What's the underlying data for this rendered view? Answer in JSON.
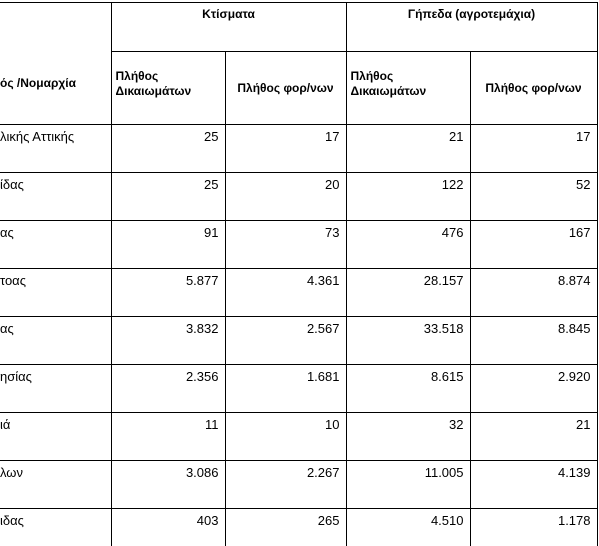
{
  "table": {
    "row_header": "ός /Νομαρχία",
    "groups": [
      "Κτίσματα",
      "Γήπεδα (αγροτεμάχια)"
    ],
    "subheaders": [
      "Πλήθος Δικαιωμάτων",
      "Πλήθος φορ/νων",
      "Πλήθος Δικαιωμάτων",
      "Πλήθος φορ/νων"
    ],
    "rows": [
      [
        "λικής Αττικής",
        "25",
        "17",
        "21",
        "17"
      ],
      [
        "ίδας",
        "25",
        "20",
        "122",
        "52"
      ],
      [
        "ας",
        "91",
        "73",
        "476",
        "167"
      ],
      [
        "τοας",
        "5.877",
        "4.361",
        "28.157",
        "8.874"
      ],
      [
        "ας",
        "3.832",
        "2.567",
        "33.518",
        "8.845"
      ],
      [
        "ησίας",
        "2.356",
        "1.681",
        "8.615",
        "2.920"
      ],
      [
        "ιά",
        "11",
        "10",
        "32",
        "21"
      ],
      [
        "λων",
        "3.086",
        "2.267",
        "11.005",
        "4.139"
      ],
      [
        "ιδας",
        "403",
        "265",
        "4.510",
        "1.178"
      ]
    ]
  }
}
